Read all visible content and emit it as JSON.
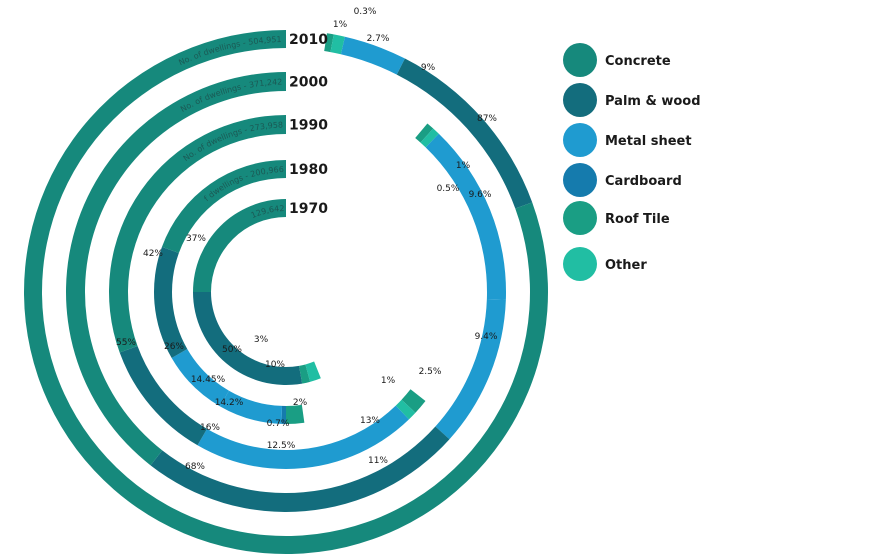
{
  "chart_data": {
    "type": "radial-bar",
    "series": [
      {
        "name": "Concrete",
        "color": "#16897c"
      },
      {
        "name": "Palm & wood",
        "color": "#136d7d"
      },
      {
        "name": "Metal sheet",
        "color": "#1f9bd0"
      },
      {
        "name": "Cardboard",
        "color": "#157bad"
      },
      {
        "name": "Roof Tile",
        "color": "#1a9e84"
      },
      {
        "name": "Other",
        "color": "#21bea3"
      }
    ],
    "rings": [
      {
        "year": "2010",
        "dwellings_label": "No. of dwellings - 504,951",
        "segments": [
          {
            "cat": "Concrete",
            "value": 87,
            "label": "87%"
          },
          {
            "cat": "Palm & wood",
            "value": 9,
            "label": "9%"
          },
          {
            "cat": "Metal sheet",
            "value": 2.7,
            "label": "2.7%"
          },
          {
            "cat": "Other",
            "value": 1,
            "label": "1%"
          },
          {
            "cat": "Roof Tile",
            "value": 0.3,
            "label": "0.3%"
          }
        ]
      },
      {
        "year": "2000",
        "dwellings_label": "No. of dwellings - 371,242",
        "segments": [
          {
            "cat": "Concrete",
            "value": 68,
            "label": "68%"
          },
          {
            "cat": "Palm & wood",
            "value": 11,
            "label": "11%"
          },
          {
            "cat": "Metal sheet",
            "value": 9.4,
            "label": "9.4%"
          },
          {
            "cat": "Metal sheet",
            "value": 9.6,
            "label": "9.6%"
          },
          {
            "cat": "Other",
            "value": 1,
            "label": "1%"
          },
          {
            "cat": "Roof Tile",
            "value": 0.5,
            "label": "0.5%"
          }
        ]
      },
      {
        "year": "1990",
        "dwellings_label": "No. of dwellings - 273,958",
        "segments": [
          {
            "cat": "Concrete",
            "value": 55,
            "label": "55%"
          },
          {
            "cat": "Palm & wood",
            "value": 16,
            "label": "16%"
          },
          {
            "cat": "Metal sheet",
            "value": 12.5,
            "label": "12.5%"
          },
          {
            "cat": "Metal sheet",
            "value": 13,
            "label": "13%"
          },
          {
            "cat": "Other",
            "value": 1,
            "label": "1%"
          },
          {
            "cat": "Roof Tile",
            "value": 2.5,
            "label": "2.5%"
          }
        ]
      },
      {
        "year": "1980",
        "dwellings_label": "No. of dwellings - 200,966",
        "segments": [
          {
            "cat": "Concrete",
            "value": 42,
            "label": "42%"
          },
          {
            "cat": "Palm & wood",
            "value": 26,
            "label": "26%"
          },
          {
            "cat": "Metal sheet",
            "value": 14.45,
            "label": "14.45%"
          },
          {
            "cat": "Metal sheet",
            "value": 14.2,
            "label": "14.2%"
          },
          {
            "cat": "Cardboard",
            "value": 0.7,
            "label": "0.7%"
          },
          {
            "cat": "Roof Tile",
            "value": 2,
            "label": "2%"
          }
        ]
      },
      {
        "year": "1970",
        "dwellings_label": "129,642",
        "segments": [
          {
            "cat": "Concrete",
            "value": 37,
            "label": "37%"
          },
          {
            "cat": "Palm & wood",
            "value": 50,
            "label": "50%"
          },
          {
            "cat": "Roof Tile",
            "value": 3,
            "label": "3%"
          },
          {
            "cat": "Other",
            "value": 10,
            "label": "10%"
          }
        ]
      }
    ]
  }
}
